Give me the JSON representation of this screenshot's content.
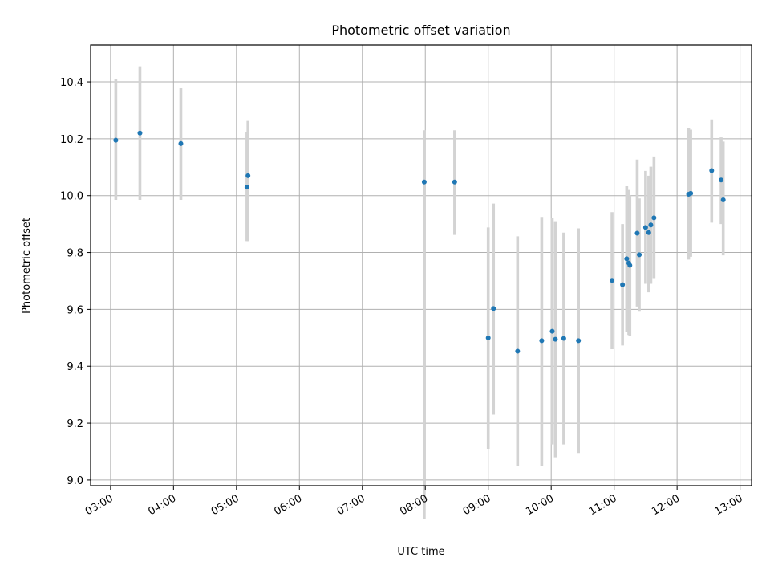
{
  "chart_data": {
    "type": "scatter",
    "title": "Photometric offset variation",
    "xlabel": "UTC time",
    "ylabel": "Photometric offset",
    "x_ticks": [
      "03:00",
      "04:00",
      "05:00",
      "06:00",
      "07:00",
      "08:00",
      "09:00",
      "10:00",
      "11:00",
      "12:00",
      "13:00"
    ],
    "y_ticks": [
      "9.0",
      "9.2",
      "9.4",
      "9.6",
      "9.8",
      "10.0",
      "10.2",
      "10.4"
    ],
    "xlim": [
      "02:41",
      "13:11"
    ],
    "ylim": [
      8.98,
      10.53
    ],
    "grid": true,
    "colors": {
      "point": "#1f77b4",
      "errorbar": "#d3d3d3",
      "grid": "#b0b0b0"
    },
    "points": [
      {
        "x": "03:05",
        "y": 10.195,
        "lo": 9.985,
        "hi": 10.41
      },
      {
        "x": "03:28",
        "y": 10.22,
        "lo": 9.985,
        "hi": 10.455
      },
      {
        "x": "04:07",
        "y": 10.183,
        "lo": 9.985,
        "hi": 10.378
      },
      {
        "x": "05:10",
        "y": 10.03,
        "lo": 9.84,
        "hi": 10.225
      },
      {
        "x": "05:11",
        "y": 10.07,
        "lo": 9.84,
        "hi": 10.263
      },
      {
        "x": "07:59",
        "y": 10.048,
        "lo": 8.862,
        "hi": 10.23
      },
      {
        "x": "08:28",
        "y": 10.048,
        "lo": 9.862,
        "hi": 10.23
      },
      {
        "x": "09:00",
        "y": 9.5,
        "lo": 9.11,
        "hi": 9.888
      },
      {
        "x": "09:05",
        "y": 9.603,
        "lo": 9.23,
        "hi": 9.972
      },
      {
        "x": "09:28",
        "y": 9.453,
        "lo": 9.048,
        "hi": 9.857
      },
      {
        "x": "09:51",
        "y": 9.49,
        "lo": 9.05,
        "hi": 9.925
      },
      {
        "x": "10:01",
        "y": 9.523,
        "lo": 9.125,
        "hi": 9.92
      },
      {
        "x": "10:04",
        "y": 9.495,
        "lo": 9.08,
        "hi": 9.91
      },
      {
        "x": "10:12",
        "y": 9.498,
        "lo": 9.125,
        "hi": 9.87
      },
      {
        "x": "10:26",
        "y": 9.49,
        "lo": 9.095,
        "hi": 9.885
      },
      {
        "x": "10:58",
        "y": 9.702,
        "lo": 9.46,
        "hi": 9.942
      },
      {
        "x": "11:08",
        "y": 9.687,
        "lo": 9.473,
        "hi": 9.9
      },
      {
        "x": "11:12",
        "y": 9.778,
        "lo": 9.52,
        "hi": 10.033
      },
      {
        "x": "11:14",
        "y": 9.763,
        "lo": 9.51,
        "hi": 10.02
      },
      {
        "x": "11:15",
        "y": 9.755,
        "lo": 9.508,
        "hi": 10.0
      },
      {
        "x": "11:22",
        "y": 9.868,
        "lo": 9.61,
        "hi": 10.127
      },
      {
        "x": "11:24",
        "y": 9.792,
        "lo": 9.592,
        "hi": 9.99
      },
      {
        "x": "11:30",
        "y": 9.888,
        "lo": 9.69,
        "hi": 10.087
      },
      {
        "x": "11:33",
        "y": 9.87,
        "lo": 9.66,
        "hi": 10.07
      },
      {
        "x": "11:35",
        "y": 9.897,
        "lo": 9.69,
        "hi": 10.102
      },
      {
        "x": "11:38",
        "y": 9.922,
        "lo": 9.71,
        "hi": 10.138
      },
      {
        "x": "12:11",
        "y": 10.005,
        "lo": 9.775,
        "hi": 10.237
      },
      {
        "x": "12:13",
        "y": 10.008,
        "lo": 9.785,
        "hi": 10.232
      },
      {
        "x": "12:33",
        "y": 10.088,
        "lo": 9.905,
        "hi": 10.268
      },
      {
        "x": "12:42",
        "y": 10.055,
        "lo": 9.9,
        "hi": 10.205
      },
      {
        "x": "12:44",
        "y": 9.985,
        "lo": 9.79,
        "hi": 10.19
      }
    ]
  }
}
